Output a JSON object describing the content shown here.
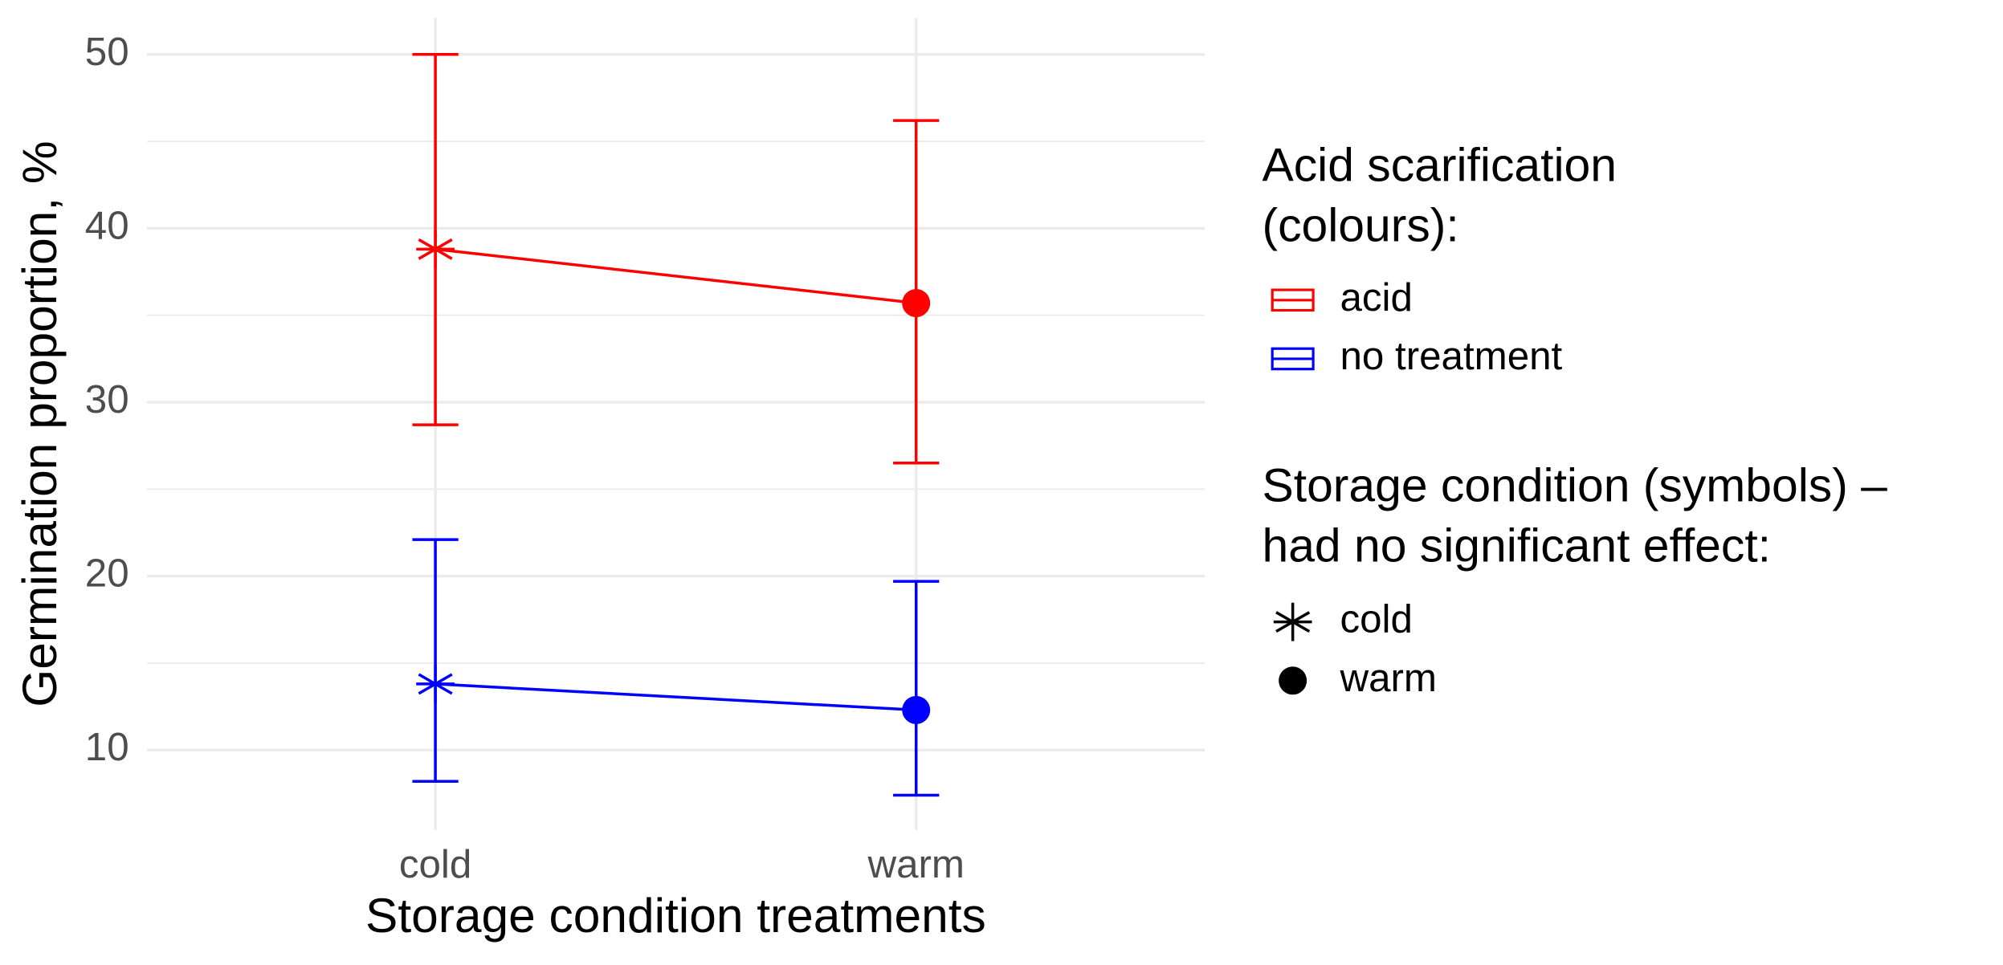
{
  "chart_data": {
    "type": "errorbar-line",
    "x_label": "Storage condition treatments",
    "y_label": "Germination proportion, %",
    "categories": [
      "cold",
      "warm"
    ],
    "ylim": [
      5.4,
      52.1
    ],
    "yticks": [
      10,
      20,
      30,
      40,
      50
    ],
    "minor_yticks": [
      15,
      25,
      35,
      45
    ],
    "grid": true,
    "color_legend": {
      "title": [
        "Acid scarification",
        "(colours):"
      ]
    },
    "series": [
      {
        "name": "acid",
        "color": "#ff0000",
        "values": [
          38.8,
          35.7
        ],
        "lower": [
          28.7,
          26.5
        ],
        "upper": [
          50.0,
          46.2
        ]
      },
      {
        "name": "no treatment",
        "color": "#0000ff",
        "values": [
          13.8,
          12.3
        ],
        "lower": [
          8.2,
          7.4
        ],
        "upper": [
          22.1,
          19.7
        ]
      }
    ],
    "shape_legend": {
      "title": [
        "Storage condition (symbols) –",
        "had no significant effect:"
      ],
      "items": [
        {
          "label": "cold",
          "shape": "asterisk"
        },
        {
          "label": "warm",
          "shape": "circle"
        }
      ]
    }
  }
}
